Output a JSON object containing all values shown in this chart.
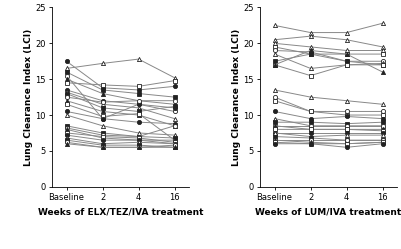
{
  "left_panel": {
    "xlabel": "Weeks of ELX/TEZ/IVA treatment",
    "ylabel": "Lung Clearance Index (LCI)",
    "xtick_labels": [
      "Baseline",
      "2",
      "4",
      "16"
    ],
    "xtick_pos": [
      0,
      1,
      2,
      3
    ],
    "ylim": [
      0,
      25
    ],
    "yticks": [
      0,
      5,
      10,
      15,
      20,
      25
    ],
    "series": [
      {
        "marker": "o",
        "filled": true,
        "values": [
          17.5,
          13.8,
          13.5,
          14.0
        ]
      },
      {
        "marker": "^",
        "filled": false,
        "values": [
          16.5,
          17.2,
          17.8,
          15.2
        ]
      },
      {
        "marker": "s",
        "filled": true,
        "values": [
          16.0,
          13.5,
          13.0,
          12.5
        ]
      },
      {
        "marker": "o",
        "filled": false,
        "values": [
          15.5,
          9.5,
          11.5,
          10.5
        ]
      },
      {
        "marker": "^",
        "filled": true,
        "values": [
          15.0,
          13.0,
          12.0,
          11.5
        ]
      },
      {
        "marker": "s",
        "filled": false,
        "values": [
          14.5,
          14.2,
          14.0,
          14.8
        ]
      },
      {
        "marker": "o",
        "filled": true,
        "values": [
          13.5,
          12.0,
          11.5,
          11.0
        ]
      },
      {
        "marker": "^",
        "filled": false,
        "values": [
          13.2,
          11.5,
          11.0,
          9.5
        ]
      },
      {
        "marker": "s",
        "filled": true,
        "values": [
          13.0,
          11.0,
          10.5,
          11.2
        ]
      },
      {
        "marker": "o",
        "filled": false,
        "values": [
          12.5,
          11.8,
          12.0,
          12.0
        ]
      },
      {
        "marker": "^",
        "filled": true,
        "values": [
          12.0,
          10.5,
          10.0,
          8.5
        ]
      },
      {
        "marker": "s",
        "filled": false,
        "values": [
          11.5,
          9.8,
          10.2,
          6.5
        ]
      },
      {
        "marker": "o",
        "filled": true,
        "values": [
          10.5,
          9.5,
          9.0,
          8.8
        ]
      },
      {
        "marker": "^",
        "filled": false,
        "values": [
          10.0,
          8.5,
          7.5,
          7.2
        ]
      },
      {
        "marker": "s",
        "filled": true,
        "values": [
          8.5,
          7.5,
          7.0,
          6.8
        ]
      },
      {
        "marker": "o",
        "filled": false,
        "values": [
          8.2,
          7.2,
          7.0,
          8.5
        ]
      },
      {
        "marker": "^",
        "filled": true,
        "values": [
          8.0,
          6.8,
          6.5,
          6.5
        ]
      },
      {
        "marker": "s",
        "filled": false,
        "values": [
          7.5,
          7.0,
          6.8,
          6.2
        ]
      },
      {
        "marker": "o",
        "filled": true,
        "values": [
          7.2,
          6.5,
          6.5,
          6.0
        ]
      },
      {
        "marker": "^",
        "filled": false,
        "values": [
          6.8,
          6.0,
          6.2,
          6.0
        ]
      },
      {
        "marker": "s",
        "filled": true,
        "values": [
          6.5,
          5.8,
          5.8,
          5.5
        ]
      },
      {
        "marker": "o",
        "filled": false,
        "values": [
          6.2,
          5.5,
          5.5,
          5.8
        ]
      },
      {
        "marker": "^",
        "filled": true,
        "values": [
          6.0,
          5.5,
          5.5,
          5.5
        ]
      }
    ]
  },
  "right_panel": {
    "xlabel": "Weeks of LUM/IVA treatment",
    "ylabel": "Lung Clearance Index (LCI)",
    "xtick_labels": [
      "Baseline",
      "2",
      "4",
      "16"
    ],
    "xtick_pos": [
      0,
      1,
      2,
      3
    ],
    "ylim": [
      0,
      25
    ],
    "yticks": [
      0,
      5,
      10,
      15,
      20,
      25
    ],
    "series": [
      {
        "marker": "^",
        "filled": false,
        "values": [
          22.5,
          21.5,
          21.5,
          22.8
        ]
      },
      {
        "marker": "^",
        "filled": false,
        "values": [
          20.5,
          21.0,
          20.5,
          19.5
        ]
      },
      {
        "marker": "^",
        "filled": false,
        "values": [
          20.0,
          19.5,
          19.0,
          19.0
        ]
      },
      {
        "marker": "s",
        "filled": false,
        "values": [
          19.5,
          18.5,
          18.5,
          18.5
        ]
      },
      {
        "marker": "o",
        "filled": false,
        "values": [
          19.0,
          18.8,
          17.5,
          17.5
        ]
      },
      {
        "marker": "^",
        "filled": false,
        "values": [
          18.5,
          16.5,
          17.0,
          17.2
        ]
      },
      {
        "marker": "s",
        "filled": true,
        "values": [
          17.5,
          18.5,
          17.5,
          17.0
        ]
      },
      {
        "marker": "s",
        "filled": false,
        "values": [
          17.0,
          15.5,
          17.0,
          17.0
        ]
      },
      {
        "marker": "^",
        "filled": true,
        "values": [
          17.0,
          19.0,
          18.5,
          16.0
        ]
      },
      {
        "marker": "^",
        "filled": false,
        "values": [
          13.5,
          12.5,
          12.0,
          11.5
        ]
      },
      {
        "marker": "o",
        "filled": false,
        "values": [
          12.5,
          10.5,
          10.5,
          10.5
        ]
      },
      {
        "marker": "s",
        "filled": false,
        "values": [
          12.0,
          10.5,
          10.0,
          10.0
        ]
      },
      {
        "marker": "o",
        "filled": true,
        "values": [
          10.5,
          9.5,
          9.8,
          9.5
        ]
      },
      {
        "marker": "^",
        "filled": false,
        "values": [
          9.5,
          8.5,
          8.5,
          8.5
        ]
      },
      {
        "marker": "s",
        "filled": true,
        "values": [
          9.0,
          9.0,
          8.8,
          9.0
        ]
      },
      {
        "marker": "o",
        "filled": false,
        "values": [
          8.5,
          8.5,
          8.5,
          8.5
        ]
      },
      {
        "marker": "^",
        "filled": true,
        "values": [
          8.5,
          8.0,
          8.0,
          8.0
        ]
      },
      {
        "marker": "s",
        "filled": false,
        "values": [
          8.0,
          8.0,
          8.0,
          7.8
        ]
      },
      {
        "marker": "o",
        "filled": true,
        "values": [
          7.5,
          7.5,
          7.5,
          7.5
        ]
      },
      {
        "marker": "^",
        "filled": false,
        "values": [
          7.5,
          7.0,
          7.2,
          7.2
        ]
      },
      {
        "marker": "s",
        "filled": true,
        "values": [
          7.0,
          6.8,
          6.5,
          6.5
        ]
      },
      {
        "marker": "o",
        "filled": false,
        "values": [
          6.5,
          6.5,
          6.5,
          6.5
        ]
      },
      {
        "marker": "^",
        "filled": true,
        "values": [
          6.5,
          6.2,
          6.0,
          6.2
        ]
      },
      {
        "marker": "s",
        "filled": false,
        "values": [
          6.2,
          6.0,
          6.0,
          6.2
        ]
      },
      {
        "marker": "o",
        "filled": true,
        "values": [
          6.0,
          6.0,
          5.5,
          6.0
        ]
      }
    ]
  },
  "line_color": "#888888",
  "line_width": 0.7,
  "marker_size": 3.0,
  "marker_edge_width": 0.6,
  "filled_face_color": "#222222",
  "filled_edge_color": "#222222",
  "open_face_color": "#ffffff",
  "open_edge_color": "#222222",
  "axis_label_fontsize": 6.5,
  "tick_label_fontsize": 6.0,
  "xlabel_fontweight": "bold"
}
